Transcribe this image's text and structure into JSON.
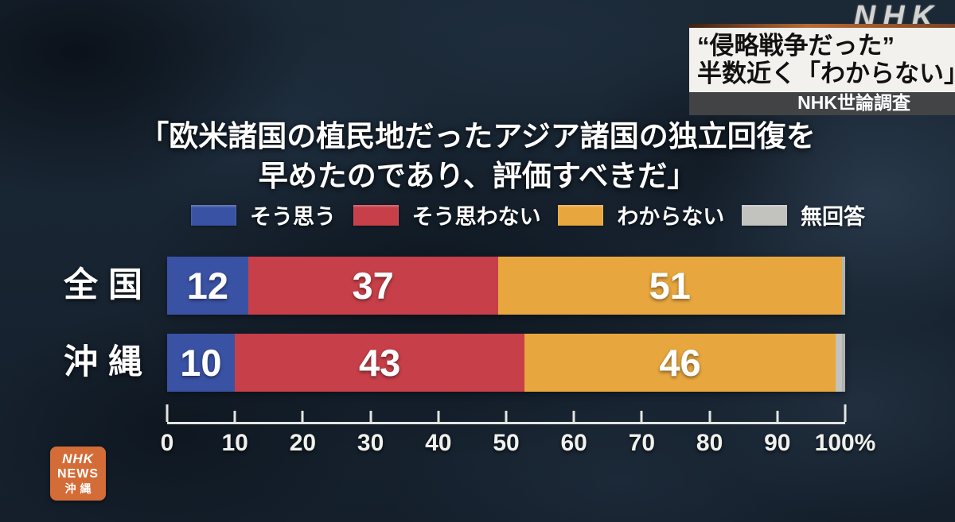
{
  "brand": {
    "watermark": "NHK",
    "station_logo": {
      "line1": "NHK",
      "line2": "NEWS",
      "line3": "沖縄",
      "bg_color": "#d46c38"
    }
  },
  "headline": {
    "line1": "“侵略戦争だった”",
    "line2": "半数近く「わからない」",
    "source": "NHK世論調査"
  },
  "question": {
    "line1": "「欧米諸国の植民地だったアジア諸国の独立回復を",
    "line2": "早めたのであり、評価すべきだ」"
  },
  "chart_data": {
    "type": "bar",
    "stacked": true,
    "orientation": "horizontal",
    "categories": [
      "全国",
      "沖縄"
    ],
    "series": [
      {
        "name": "そう思う",
        "color": "#3a52a4",
        "values": [
          12,
          10
        ],
        "show_value": true
      },
      {
        "name": "そう思わない",
        "color": "#c73f49",
        "values": [
          37,
          43
        ],
        "show_value": true
      },
      {
        "name": "わからない",
        "color": "#e8a73e",
        "values": [
          51,
          46
        ],
        "show_value": true
      },
      {
        "name": "無回答",
        "color": "#c2c2bf",
        "values": [
          0,
          1
        ],
        "show_value": false
      }
    ],
    "xlim": [
      0,
      100
    ],
    "unit": "%",
    "x_ticks": [
      0,
      10,
      20,
      30,
      40,
      50,
      60,
      70,
      80,
      90,
      100
    ],
    "x_tick_labels": [
      "0",
      "10",
      "20",
      "30",
      "40",
      "50",
      "60",
      "70",
      "80",
      "90",
      "100%"
    ],
    "legend_position": "top",
    "grid": false
  }
}
